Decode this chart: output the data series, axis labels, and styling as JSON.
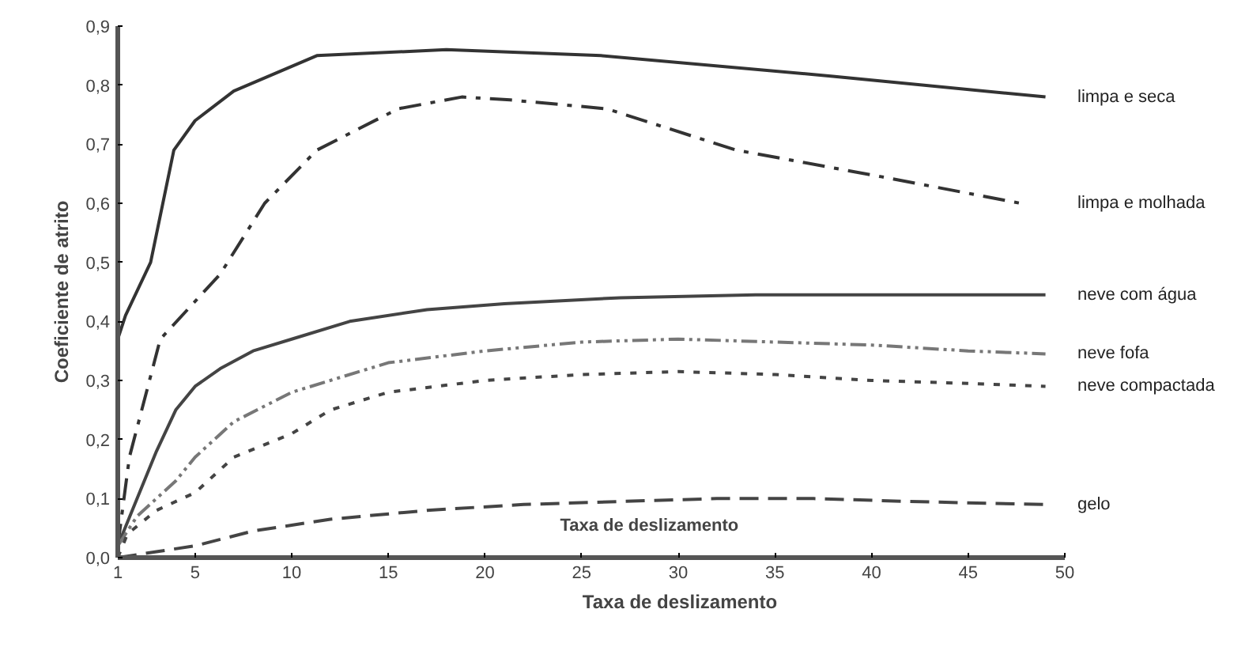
{
  "chart_data": {
    "type": "line",
    "xlabel": "Taxa de deslizamento",
    "ylabel": "Coeficiente de atrito",
    "annotations": [
      "Taxa de deslizamento"
    ],
    "xlim": [
      1,
      50
    ],
    "xticks": [
      1,
      5,
      10,
      15,
      20,
      25,
      30,
      35,
      40,
      45,
      50
    ],
    "ylim": [
      0,
      0.9
    ],
    "yticks": [
      {
        "value": 0,
        "label": "0,0"
      },
      {
        "value": 0.1,
        "label": "0,1"
      },
      {
        "value": 0.2,
        "label": "0,2"
      },
      {
        "value": 0.3,
        "label": "0,3"
      },
      {
        "value": 0.4,
        "label": "0,4"
      },
      {
        "value": 0.5,
        "label": "0,5"
      },
      {
        "value": 0.6,
        "label": "0,6"
      },
      {
        "value": 0.7,
        "label": "0,7"
      },
      {
        "value": 0.8,
        "label": "0,8"
      },
      {
        "value": 0.9,
        "label": "0,9"
      }
    ],
    "grid": false,
    "marker": "none",
    "series": [
      {
        "name": "limpa e seca",
        "color": "#333333",
        "line_style": "solid",
        "x": [
          1,
          1.4,
          2.7,
          3.9,
          5,
          7,
          11.3,
          18,
          26,
          38,
          49
        ],
        "values": [
          0.37,
          0.41,
          0.5,
          0.69,
          0.74,
          0.79,
          0.85,
          0.86,
          0.85,
          0.815,
          0.78
        ]
      },
      {
        "name": "limpa e molhada",
        "color": "#333333",
        "line_style": "dashdot",
        "x": [
          1,
          1.6,
          3.2,
          6.3,
          8.6,
          11.3,
          15.5,
          18.8,
          21.3,
          26.3,
          33,
          40.5,
          47.7
        ],
        "values": [
          0.02,
          0.17,
          0.37,
          0.48,
          0.6,
          0.69,
          0.76,
          0.78,
          0.775,
          0.76,
          0.69,
          0.645,
          0.6
        ]
      },
      {
        "name": "neve com água",
        "color": "#444444",
        "line_style": "solid",
        "x": [
          1,
          2,
          3,
          4,
          5,
          6.3,
          8,
          10,
          13,
          17,
          21,
          27,
          34,
          49
        ],
        "values": [
          0.02,
          0.1,
          0.18,
          0.25,
          0.29,
          0.32,
          0.35,
          0.37,
          0.4,
          0.42,
          0.43,
          0.44,
          0.445,
          0.445
        ]
      },
      {
        "name": "neve fofa",
        "color": "#777777",
        "line_style": "dashdotdot",
        "x": [
          1,
          2,
          4,
          5,
          7,
          10,
          12,
          15,
          20,
          25,
          30,
          35,
          40,
          45,
          49
        ],
        "values": [
          0.02,
          0.07,
          0.13,
          0.17,
          0.23,
          0.28,
          0.3,
          0.33,
          0.35,
          0.365,
          0.37,
          0.365,
          0.36,
          0.35,
          0.345
        ]
      },
      {
        "name": "neve compactada",
        "color": "#444444",
        "line_style": "dotted",
        "x": [
          1,
          1.5,
          3,
          5,
          7,
          10,
          12,
          15,
          20,
          25,
          30,
          35,
          40,
          45,
          49
        ],
        "values": [
          0,
          0.04,
          0.08,
          0.11,
          0.17,
          0.21,
          0.25,
          0.28,
          0.3,
          0.31,
          0.315,
          0.31,
          0.3,
          0.295,
          0.29
        ]
      },
      {
        "name": "gelo",
        "color": "#444444",
        "line_style": "dashed",
        "x": [
          1,
          3,
          5,
          8,
          12,
          17,
          22,
          27,
          32,
          37,
          42,
          49
        ],
        "values": [
          0,
          0.01,
          0.02,
          0.045,
          0.065,
          0.08,
          0.09,
          0.095,
          0.1,
          0.1,
          0.095,
          0.09
        ]
      }
    ]
  }
}
